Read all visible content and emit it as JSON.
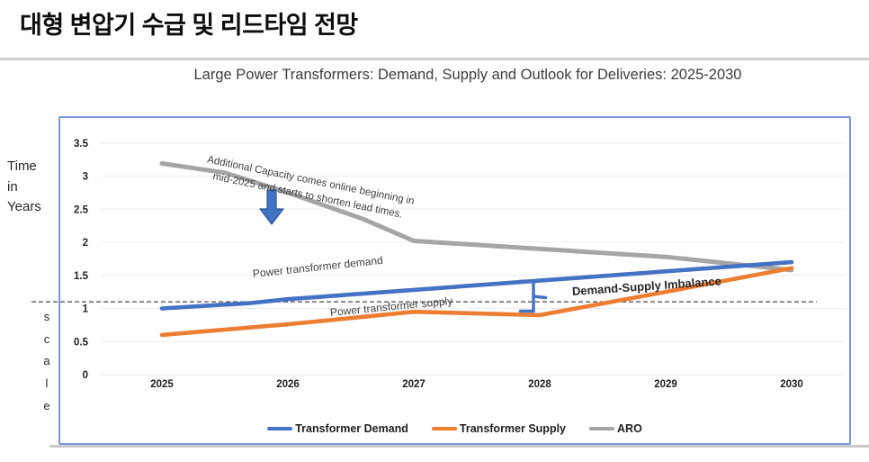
{
  "page_title": "대형 변압기 수급 및 리드타임 전망",
  "figure": {
    "chart_title": "Large Power Transformers:  Demand, Supply and Outlook for Deliveries:  2025-2030",
    "y_axis_title": [
      "Time",
      "in",
      "Years"
    ],
    "scale_letters": [
      "s",
      "c",
      "a",
      "l",
      "e"
    ]
  },
  "annotations": {
    "capacity_note_line1": "Additional Capacity comes online beginning in",
    "capacity_note_line2": "mid-2025 and starts to shorten lead times.",
    "demand_line_label": "Power transformer demand",
    "supply_line_label": "Power transformer supply",
    "imbalance_label": "Demand-Supply Imbalance"
  },
  "legend": [
    {
      "label": "Transformer Demand",
      "color": "#4472C4"
    },
    {
      "label": "Transformer Supply",
      "color": "#ED7D31"
    },
    {
      "label": "ARO",
      "color": "#A5A5A5"
    }
  ],
  "colors": {
    "demand": "#4472C4",
    "supply": "#ED7D31",
    "aro": "#A5A5A5",
    "arrow_fill": "#4472C4",
    "arrow_border": "#2E5597",
    "chart_border": "#7B99D6",
    "reference_line": "#4A4A4A"
  },
  "chart_data": {
    "type": "line",
    "title": "Large Power Transformers:  Demand, Supply and Outlook for Deliveries:  2025-2030",
    "xlabel": "",
    "ylabel": "Time in Years scale",
    "x": [
      2025,
      2026,
      2027,
      2028,
      2029,
      2030
    ],
    "ylim": [
      0,
      3.5
    ],
    "yticks": [
      0,
      0.5,
      1,
      1.5,
      2,
      2.5,
      3,
      3.5
    ],
    "grid": true,
    "legend_position": "bottom",
    "reference_line": {
      "y": 1.1,
      "style": "dashed",
      "meaning": "current lead-time level crossed by demand/supply"
    },
    "series": [
      {
        "name": "Transformer Demand",
        "color": "#4472C4",
        "values": [
          1.0,
          1.15,
          1.3,
          1.4,
          1.55,
          1.7
        ],
        "points": [
          [
            2025,
            1.0
          ],
          [
            2025.7,
            1.08
          ],
          [
            2026,
            1.14
          ],
          [
            2027,
            1.28
          ],
          [
            2028,
            1.42
          ],
          [
            2029,
            1.56
          ],
          [
            2030,
            1.7
          ]
        ]
      },
      {
        "name": "Transformer Supply",
        "color": "#ED7D31",
        "values": [
          0.6,
          0.75,
          0.95,
          0.9,
          1.25,
          1.6
        ],
        "points": [
          [
            2025,
            0.6
          ],
          [
            2026,
            0.76
          ],
          [
            2027,
            0.95
          ],
          [
            2027.6,
            0.92
          ],
          [
            2028,
            0.9
          ],
          [
            2029,
            1.25
          ],
          [
            2030,
            1.61
          ]
        ]
      },
      {
        "name": "ARO",
        "color": "#A5A5A5",
        "values": [
          3.2,
          2.75,
          2.0,
          1.9,
          1.8,
          1.6
        ],
        "points": [
          [
            2025,
            3.19
          ],
          [
            2025.5,
            3.05
          ],
          [
            2026,
            2.75
          ],
          [
            2026.6,
            2.35
          ],
          [
            2027,
            2.02
          ],
          [
            2028,
            1.9
          ],
          [
            2029,
            1.78
          ],
          [
            2030,
            1.58
          ]
        ]
      }
    ]
  }
}
